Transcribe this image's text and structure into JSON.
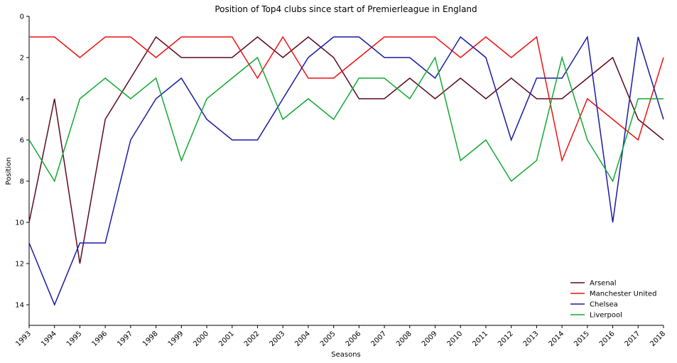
{
  "chart_data": {
    "type": "line",
    "title": "Position of Top4 clubs since start of Premierleague in England",
    "xlabel": "Seasons",
    "ylabel": "Position",
    "x": [
      1993,
      1994,
      1995,
      1996,
      1997,
      1998,
      1999,
      2000,
      2001,
      2002,
      2003,
      2004,
      2005,
      2006,
      2007,
      2008,
      2009,
      2010,
      2011,
      2012,
      2013,
      2014,
      2015,
      2016,
      2017,
      2018
    ],
    "x_tick_labels": [
      "1993",
      "1994",
      "1995",
      "1996",
      "1997",
      "1998",
      "1999",
      "2000",
      "2001",
      "2002",
      "2003",
      "2004",
      "2005",
      "2006",
      "2007",
      "2008",
      "2009",
      "2010",
      "2011",
      "2012",
      "2013",
      "2014",
      "2015",
      "2016",
      "2017",
      "2018"
    ],
    "ylim": [
      15,
      0
    ],
    "y_inverted": true,
    "y_ticks": [
      0,
      2,
      4,
      6,
      8,
      10,
      12,
      14
    ],
    "grid": false,
    "legend_position": "lower-right",
    "series": [
      {
        "name": "Arsenal",
        "color": "#5c0a1e",
        "values": [
          10,
          4,
          12,
          5,
          3,
          1,
          2,
          2,
          2,
          1,
          2,
          1,
          2,
          4,
          4,
          3,
          4,
          3,
          4,
          3,
          4,
          4,
          3,
          2,
          5,
          6
        ]
      },
      {
        "name": "Manchester United",
        "color": "#ee1111",
        "values": [
          1,
          1,
          2,
          1,
          1,
          2,
          1,
          1,
          1,
          3,
          1,
          3,
          3,
          2,
          1,
          1,
          1,
          2,
          1,
          2,
          1,
          7,
          4,
          5,
          6,
          2
        ]
      },
      {
        "name": "Chelsea",
        "color": "#1a1aa6",
        "values": [
          11,
          14,
          11,
          11,
          6,
          4,
          3,
          5,
          6,
          6,
          4,
          2,
          1,
          1,
          2,
          2,
          3,
          1,
          2,
          6,
          3,
          3,
          1,
          10,
          1,
          5
        ]
      },
      {
        "name": "Liverpool",
        "color": "#11aa33",
        "values": [
          6,
          8,
          4,
          3,
          4,
          3,
          7,
          4,
          3,
          2,
          5,
          4,
          5,
          3,
          3,
          4,
          2,
          7,
          6,
          8,
          7,
          2,
          6,
          8,
          4,
          4
        ]
      }
    ]
  }
}
